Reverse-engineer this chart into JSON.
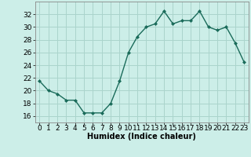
{
  "x": [
    0,
    1,
    2,
    3,
    4,
    5,
    6,
    7,
    8,
    9,
    10,
    11,
    12,
    13,
    14,
    15,
    16,
    17,
    18,
    19,
    20,
    21,
    22,
    23
  ],
  "y": [
    21.5,
    20.0,
    19.5,
    18.5,
    18.5,
    16.5,
    16.5,
    16.5,
    18.0,
    21.5,
    26.0,
    28.5,
    30.0,
    30.5,
    32.5,
    30.5,
    31.0,
    31.0,
    32.5,
    30.0,
    29.5,
    30.0,
    27.5,
    24.5
  ],
  "line_color": "#1a6b5a",
  "marker": "D",
  "marker_size": 2.0,
  "line_width": 1.0,
  "bg_color": "#cceee8",
  "grid_color": "#aad4cc",
  "xlabel": "Humidex (Indice chaleur)",
  "xlim": [
    -0.5,
    23.5
  ],
  "ylim": [
    15,
    34
  ],
  "yticks": [
    16,
    18,
    20,
    22,
    24,
    26,
    28,
    30,
    32
  ],
  "xticks": [
    0,
    1,
    2,
    3,
    4,
    5,
    6,
    7,
    8,
    9,
    10,
    11,
    12,
    13,
    14,
    15,
    16,
    17,
    18,
    19,
    20,
    21,
    22,
    23
  ],
  "xlabel_fontsize": 7,
  "tick_fontsize": 6.5
}
